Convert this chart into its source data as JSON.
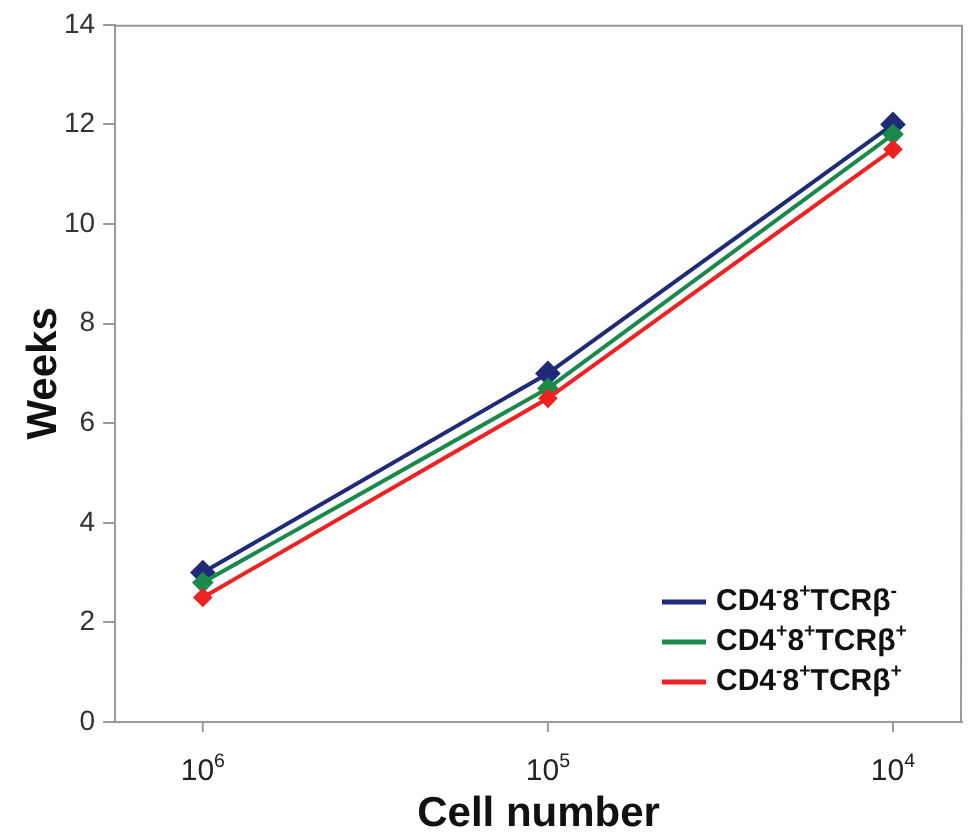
{
  "chart_data": {
    "type": "line",
    "xlabel": "Cell number",
    "ylabel": "Weeks",
    "categories": [
      "10$^{6}$",
      "10$^{5}$",
      "10$^{4}$"
    ],
    "series": [
      {
        "name": "CD4$^{-}$8$^{+}$TCRβ$^{-}$",
        "color": "#1f2a78",
        "values": [
          3,
          7,
          12
        ]
      },
      {
        "name": "CD4$^{+}$8$^{+}$TCRβ$^{+}$",
        "color": "#1a8a4a",
        "values": [
          2.8,
          6.7,
          11.8
        ]
      },
      {
        "name": "CD4$^{-}$8$^{+}$TCRβ$^{+}$",
        "color": "#ee2222",
        "values": [
          2.5,
          6.5,
          11.5
        ]
      }
    ],
    "ylim": [
      0,
      14
    ],
    "yticks": [
      0,
      2,
      4,
      6,
      8,
      10,
      12,
      14
    ],
    "grid": false,
    "legend": "bottom right",
    "marker": "diamond",
    "line_style": "solid"
  }
}
